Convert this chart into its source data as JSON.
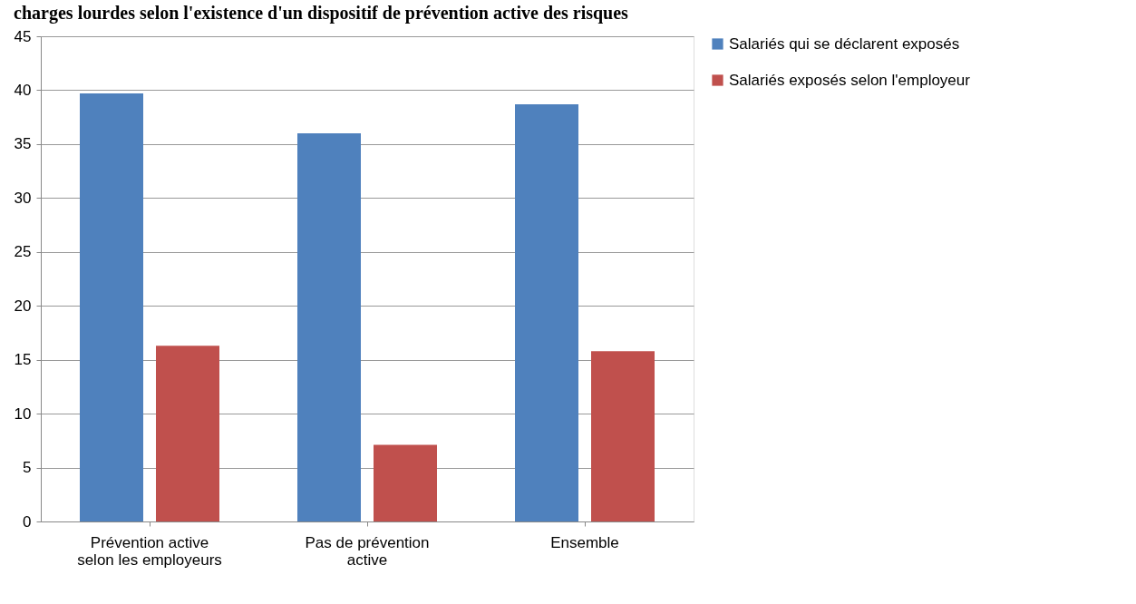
{
  "chart_data": {
    "type": "bar",
    "title": "charges lourdes selon l'existence d'un dispositif de prévention active des risques",
    "categories": [
      "Prévention active\nselon les employeurs",
      "Pas de prévention\nactive",
      "Ensemble"
    ],
    "series": [
      {
        "name": "Salariés qui se déclarent exposés",
        "color": "#4f81bd",
        "values": [
          39.7,
          36.0,
          38.7
        ]
      },
      {
        "name": "Salariés exposés selon l'employeur",
        "color": "#c0504d",
        "values": [
          16.3,
          7.1,
          15.8
        ]
      }
    ],
    "ylim": [
      0,
      45
    ],
    "yticks": [
      0,
      5,
      10,
      15,
      20,
      25,
      30,
      35,
      40,
      45
    ],
    "grid": "y",
    "legend": "right"
  }
}
